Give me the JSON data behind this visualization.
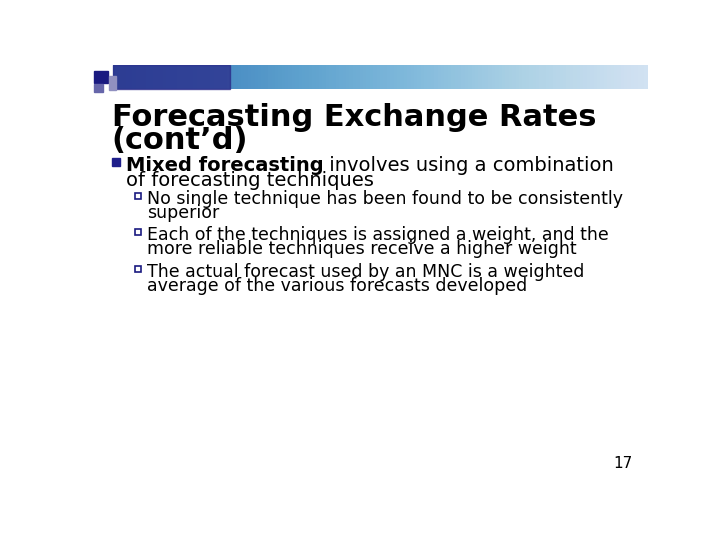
{
  "title_line1": "Forecasting Exchange Rates",
  "title_line2": "(cont’d)",
  "title_fontsize": 22,
  "title_color": "#000000",
  "bg_color": "#ffffff",
  "bullet_color": "#1F1F8B",
  "bullet_label_bold": "Mixed forecasting",
  "bullet_label_rest": " involves using a combination",
  "bullet_label_line2": "of forecasting techniques",
  "bullet_fontsize": 14,
  "sub_bullets": [
    [
      "No single technique has been found to be consistently",
      "superior"
    ],
    [
      "Each of the techniques is assigned a weight, and the",
      "more reliable techniques receive a higher weight"
    ],
    [
      "The actual forecast used by an MNC is a weighted",
      "average of the various forecasts developed"
    ]
  ],
  "sub_bullet_fontsize": 12.5,
  "page_number": "17",
  "page_number_fontsize": 11,
  "header_squares": {
    "dark": "#1a1a80",
    "mid": "#7070b0",
    "light": "#a0a0cc"
  }
}
